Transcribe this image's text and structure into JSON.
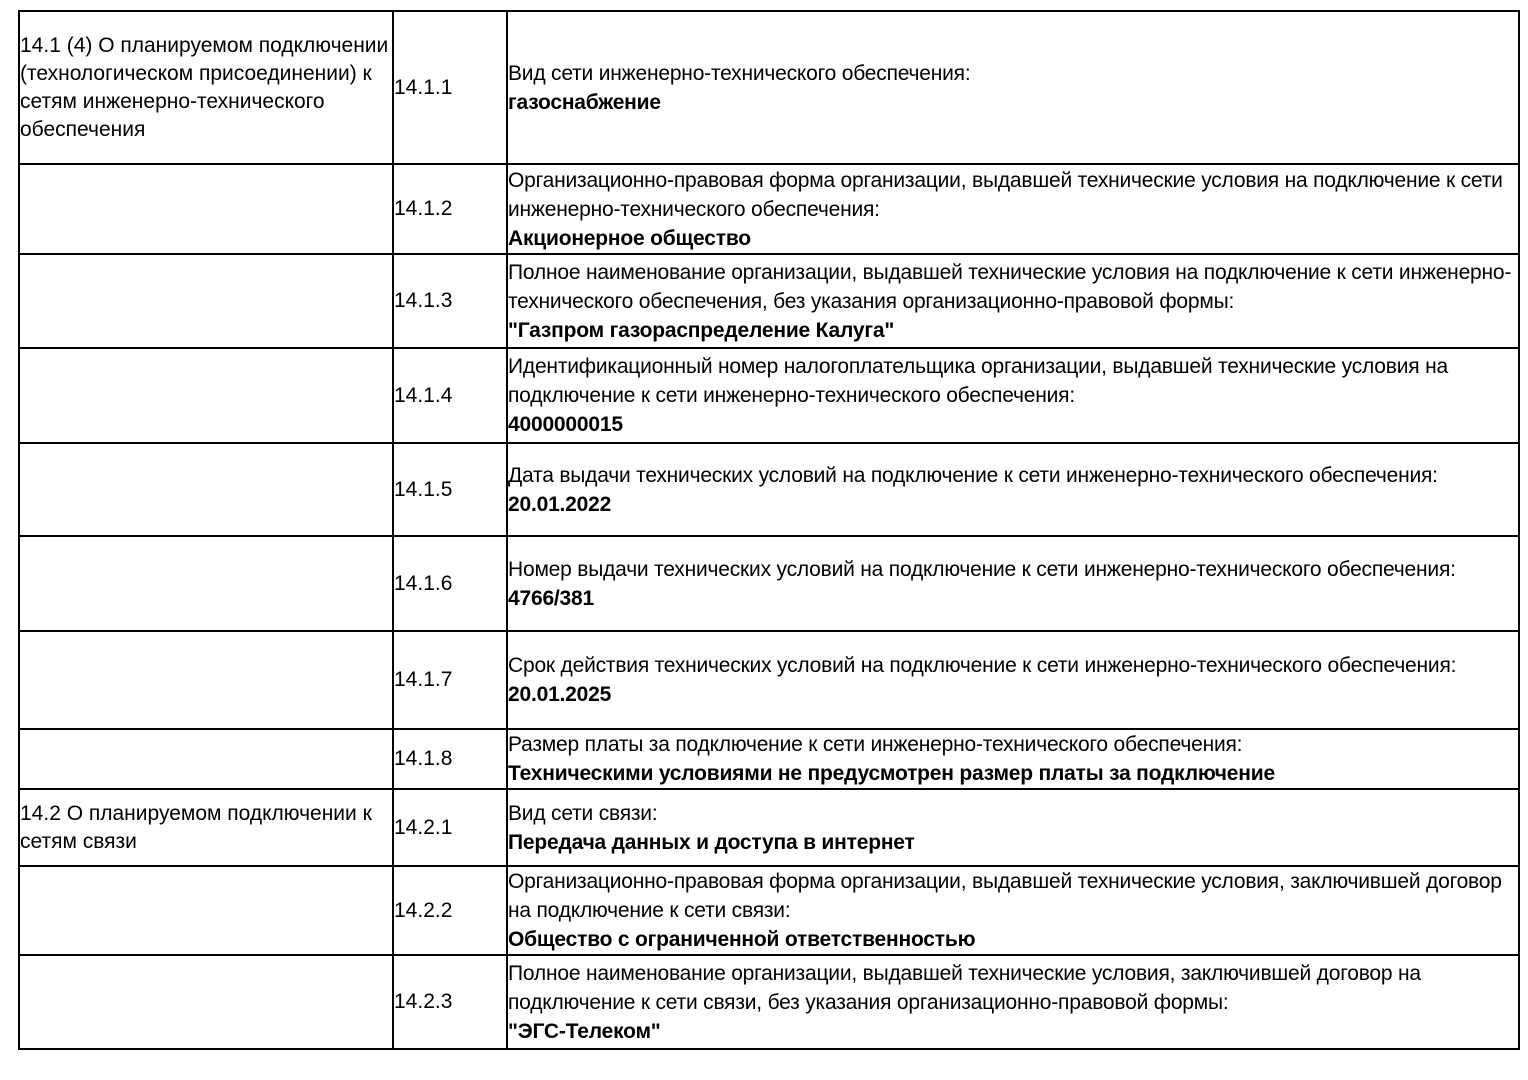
{
  "document": {
    "sections": [
      {
        "title": "14.1 (4) О планируемом подключении (технологическом присоединении) к сетям инженерно-технического обеспечения",
        "rows": [
          {
            "num": "14.1.1",
            "label": "Вид сети инженерно-технического обеспечения:",
            "value": "газоснабжение"
          },
          {
            "num": "14.1.2",
            "label": "Организационно-правовая форма организации, выдавшей технические условия на подключение к сети инженерно-технического обеспечения:",
            "value": "Акционерное общество"
          },
          {
            "num": "14.1.3",
            "label": "Полное наименование организации, выдавшей технические условия на подключение к сети инженерно-технического обеспечения, без указания организационно-правовой формы:",
            "value": "\"Газпром газораспределение Калуга\""
          },
          {
            "num": "14.1.4",
            "label": "Идентификационный номер налогоплательщика организации, выдавшей технические условия на подключение к сети инженерно-технического обеспечения:",
            "value": "4000000015"
          },
          {
            "num": "14.1.5",
            "label": "Дата выдачи технических условий на подключение к сети инженерно-технического обеспечения:",
            "value": "20.01.2022"
          },
          {
            "num": "14.1.6",
            "label": "Номер выдачи технических условий на подключение к сети инженерно-технического обеспечения:",
            "value": "4766/381"
          },
          {
            "num": "14.1.7",
            "label": "Срок действия технических условий на подключение к сети инженерно-технического обеспечения:",
            "value": "20.01.2025"
          },
          {
            "num": "14.1.8",
            "label": "Размер платы за подключение к сети инженерно-технического обеспечения:",
            "value": "Техническими условиями не предусмотрен размер платы за подключение"
          }
        ]
      },
      {
        "title": "14.2 О планируемом подключении к сетям связи",
        "rows": [
          {
            "num": "14.2.1",
            "label": "Вид сети связи:",
            "value": "Передача данных и доступа в интернет"
          },
          {
            "num": "14.2.2",
            "label": "Организационно-правовая форма организации, выдавшей технические условия, заключившей договор на подключение к сети связи:",
            "value": "Общество с ограниченной ответственностью"
          },
          {
            "num": "14.2.3",
            "label": "Полное наименование организации, выдавшей технические условия, заключившей договор на подключение к сети связи, без указания организационно-правовой формы:",
            "value": "\"ЭГС-Телеком\""
          }
        ]
      }
    ]
  }
}
